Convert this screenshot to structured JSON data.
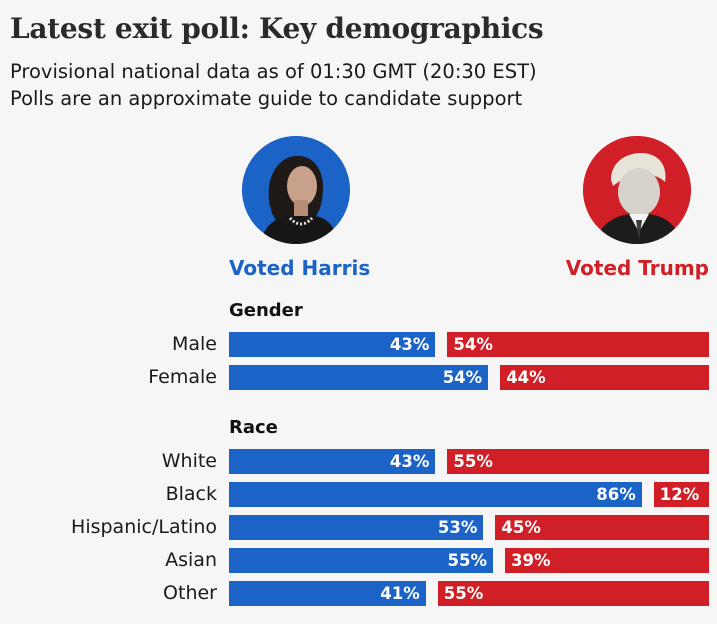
{
  "header": {
    "title": "Latest exit poll: Key demographics",
    "subtitle_line1": "Provisional national data as of 01:30 GMT (20:30 EST)",
    "subtitle_line2": "Polls are an approximate guide to candidate support"
  },
  "candidates": {
    "harris": {
      "label": "Voted Harris",
      "color": "#1b63c6",
      "icon": "harris-portrait-icon"
    },
    "trump": {
      "label": "Voted Trump",
      "color": "#d01f26",
      "icon": "trump-portrait-icon"
    }
  },
  "chart_data": {
    "type": "bar",
    "title": "Latest exit poll: Key demographics",
    "orientation": "horizontal",
    "units": "percent",
    "xlim": [
      0,
      100
    ],
    "series": [
      {
        "name": "Voted Harris",
        "color": "#1b63c6"
      },
      {
        "name": "Voted Trump",
        "color": "#d01f26"
      }
    ],
    "groups": [
      {
        "name": "Gender",
        "rows": [
          {
            "category": "Male",
            "harris": 43,
            "trump": 54,
            "harris_label": "43%",
            "trump_label": "54%"
          },
          {
            "category": "Female",
            "harris": 54,
            "trump": 44,
            "harris_label": "54%",
            "trump_label": "44%"
          }
        ]
      },
      {
        "name": "Race",
        "rows": [
          {
            "category": "White",
            "harris": 43,
            "trump": 55,
            "harris_label": "43%",
            "trump_label": "55%"
          },
          {
            "category": "Black",
            "harris": 86,
            "trump": 12,
            "harris_label": "86%",
            "trump_label": "12%"
          },
          {
            "category": "Hispanic/Latino",
            "harris": 53,
            "trump": 45,
            "harris_label": "53%",
            "trump_label": "45%"
          },
          {
            "category": "Asian",
            "harris": 55,
            "trump": 39,
            "harris_label": "55%",
            "trump_label": "39%"
          },
          {
            "category": "Other",
            "harris": 41,
            "trump": 55,
            "harris_label": "41%",
            "trump_label": "55%"
          }
        ]
      }
    ]
  }
}
